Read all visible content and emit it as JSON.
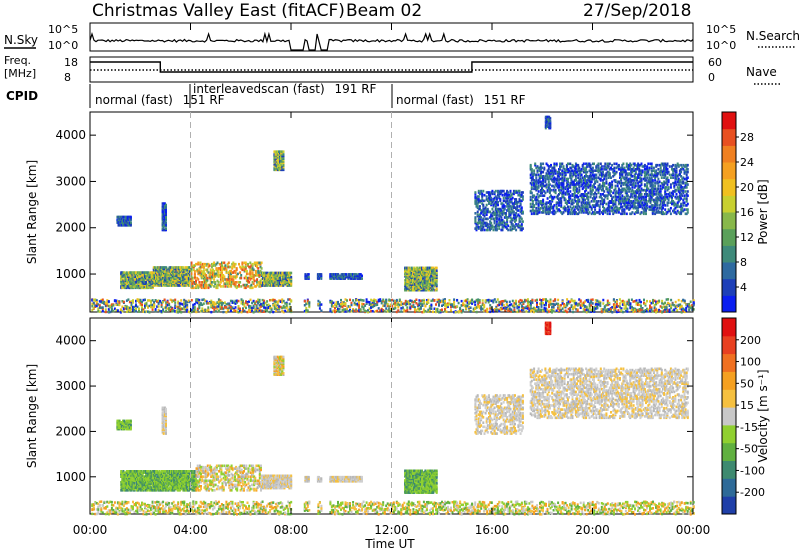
{
  "header": {
    "station": "Christmas Valley East (fitACF)",
    "beam": "Beam 02",
    "date": "27/Sep/2018"
  },
  "top_panels": {
    "nsky_label": "N.Sky",
    "nsky_ticks": [
      "10^5",
      "10^0"
    ],
    "nsearch_label": "N.Search",
    "nsearch_ticks": [
      "10^5",
      "10^0"
    ],
    "freq_label": "Freq.",
    "freq_unit": "[MHz]",
    "freq_ticks": [
      "18",
      "8"
    ],
    "nave_label": "Nave",
    "nave_ticks": [
      "60",
      "0"
    ],
    "cpid_label": "CPID",
    "cpid_segments": [
      {
        "label": "normal (fast)",
        "code": "151",
        "unit": "RF"
      },
      {
        "label": "interleavedscan (fast)",
        "code": "191",
        "unit": "RF"
      },
      {
        "label": "normal (fast)",
        "code": "151",
        "unit": "RF"
      }
    ]
  },
  "chart_data": [
    {
      "type": "heatmap",
      "quantity": "Power",
      "ylabel": "Slant Range [km]",
      "ylim": [
        180,
        4500
      ],
      "yticks": [
        1000,
        2000,
        3000,
        4000
      ],
      "xlim": [
        0,
        24
      ],
      "colorbar": {
        "label": "Power [dB]",
        "ticks": [
          "4",
          "8",
          "12",
          "16",
          "20",
          "24",
          "28"
        ],
        "colors": [
          "#0a1ef0",
          "#1d3fb8",
          "#2e6aa0",
          "#3e8a7a",
          "#5aa05a",
          "#88b84a",
          "#c8d030",
          "#f0c020",
          "#f5a020",
          "#f08020",
          "#e85020",
          "#e01010"
        ]
      },
      "patches": [
        {
          "t0": 1.05,
          "t1": 1.6,
          "r0": 2050,
          "r1": 2250,
          "level": "low"
        },
        {
          "t0": 2.85,
          "t1": 3.0,
          "r0": 1950,
          "r1": 2550,
          "level": "low"
        },
        {
          "t0": 1.2,
          "t1": 2.5,
          "r0": 700,
          "r1": 1050,
          "level": "mid"
        },
        {
          "t0": 2.5,
          "t1": 4.0,
          "r0": 750,
          "r1": 1150,
          "level": "mid"
        },
        {
          "t0": 4.0,
          "t1": 6.8,
          "r0": 700,
          "r1": 1250,
          "level": "high"
        },
        {
          "t0": 6.8,
          "t1": 8.2,
          "r0": 750,
          "r1": 1050,
          "level": "mid"
        },
        {
          "t0": 8.4,
          "t1": 10.8,
          "r0": 900,
          "r1": 1000,
          "level": "low"
        },
        {
          "t0": 12.5,
          "t1": 13.8,
          "r0": 650,
          "r1": 1150,
          "level": "mid"
        },
        {
          "t0": 7.3,
          "t1": 7.7,
          "r0": 3250,
          "r1": 3650,
          "level": "mid"
        },
        {
          "t0": 18.1,
          "t1": 18.3,
          "r0": 4150,
          "r1": 4400,
          "level": "low"
        },
        {
          "t0": 15.3,
          "t1": 17.2,
          "r0": 1950,
          "r1": 2800,
          "level": "low"
        },
        {
          "t0": 17.5,
          "t1": 23.8,
          "r0": 2300,
          "r1": 3400,
          "level": "low"
        }
      ]
    },
    {
      "type": "heatmap",
      "quantity": "Velocity",
      "ylabel": "Slant Range [km]",
      "ylim": [
        180,
        4500
      ],
      "yticks": [
        1000,
        2000,
        3000,
        4000
      ],
      "xlim": [
        0,
        24
      ],
      "xticks": [
        "00:00",
        "04:00",
        "08:00",
        "12:00",
        "16:00",
        "20:00",
        "00:00"
      ],
      "xlabel": "Time UT",
      "colorbar": {
        "label": "Velocity [m s⁻¹]",
        "ticks": [
          "200",
          "100",
          "50",
          "15",
          "-15",
          "-50",
          "-100",
          "-200"
        ],
        "colors": [
          "#1f3fa8",
          "#2e6a98",
          "#3e8a70",
          "#60b040",
          "#90d030",
          "#c8c8c8",
          "#f5c040",
          "#f5a020",
          "#f07020",
          "#e84020",
          "#e01010"
        ]
      },
      "patches": [
        {
          "t0": 1.05,
          "t1": 1.6,
          "r0": 2050,
          "r1": 2250,
          "level": "green"
        },
        {
          "t0": 2.85,
          "t1": 3.0,
          "r0": 1950,
          "r1": 2550,
          "level": "gray"
        },
        {
          "t0": 1.2,
          "t1": 4.2,
          "r0": 700,
          "r1": 1150,
          "level": "green"
        },
        {
          "t0": 4.2,
          "t1": 6.8,
          "r0": 700,
          "r1": 1250,
          "level": "mixed"
        },
        {
          "t0": 6.8,
          "t1": 8.2,
          "r0": 750,
          "r1": 1050,
          "level": "gray"
        },
        {
          "t0": 8.4,
          "t1": 10.8,
          "r0": 900,
          "r1": 1000,
          "level": "gray"
        },
        {
          "t0": 12.5,
          "t1": 13.8,
          "r0": 650,
          "r1": 1150,
          "level": "green"
        },
        {
          "t0": 7.3,
          "t1": 7.7,
          "r0": 3250,
          "r1": 3650,
          "level": "mixed"
        },
        {
          "t0": 18.1,
          "t1": 18.3,
          "r0": 4150,
          "r1": 4400,
          "level": "red"
        },
        {
          "t0": 15.3,
          "t1": 17.2,
          "r0": 1950,
          "r1": 2800,
          "level": "gray"
        },
        {
          "t0": 17.5,
          "t1": 23.8,
          "r0": 2300,
          "r1": 3400,
          "level": "gray"
        }
      ]
    }
  ]
}
